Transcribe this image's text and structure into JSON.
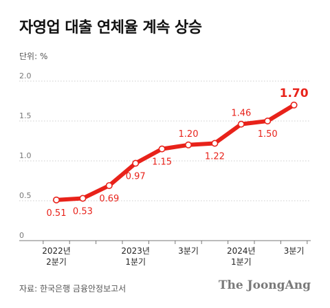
{
  "header": {
    "title": "자영업 대출 연체율 계속 상승",
    "unit": "단위: %"
  },
  "footer": {
    "source": "자료: 한국은행 금융안정보고서",
    "brand": "The JoongAng"
  },
  "chart_data": {
    "type": "line",
    "title": "자영업 대출 연체율 계속 상승",
    "ylabel": "단위: %",
    "ylim": [
      0,
      2.0
    ],
    "yticks": [
      0,
      0.5,
      1.0,
      1.5,
      2.0
    ],
    "ytick_labels": [
      "0",
      "0.5",
      "1.0",
      "1.5",
      "2.0"
    ],
    "grid": true,
    "legend": "none",
    "colors": {
      "line": "#e8221a"
    },
    "x_tick_labels": [
      {
        "lines": [
          "2022년",
          "2분기"
        ]
      },
      {
        "lines": []
      },
      {
        "lines": []
      },
      {
        "lines": [
          "2023년",
          "1분기"
        ]
      },
      {
        "lines": []
      },
      {
        "lines": [
          "3분기"
        ]
      },
      {
        "lines": []
      },
      {
        "lines": [
          "2024년",
          "1분기"
        ]
      },
      {
        "lines": []
      },
      {
        "lines": [
          "3분기"
        ]
      }
    ],
    "values": [
      0.51,
      0.53,
      0.69,
      0.97,
      1.15,
      1.2,
      1.22,
      1.46,
      1.5,
      1.7
    ],
    "value_labels": [
      "0.51",
      "0.53",
      "0.69",
      "0.97",
      "1.15",
      "1.20",
      "1.22",
      "1.46",
      "1.50",
      "1.70"
    ],
    "label_positions": [
      "below",
      "below",
      "below",
      "below",
      "below",
      "above",
      "below",
      "above",
      "below",
      "above"
    ]
  }
}
